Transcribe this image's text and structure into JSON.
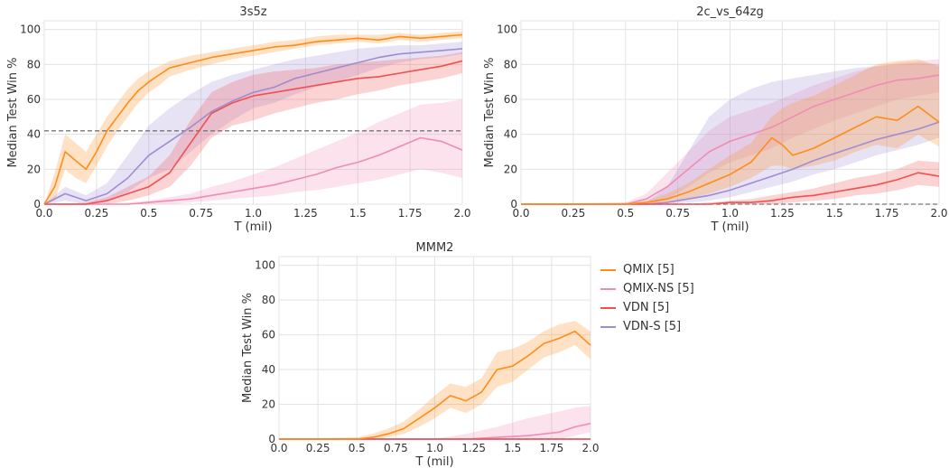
{
  "chart_data": [
    {
      "type": "line",
      "title": "3s5z",
      "xlabel": "T (mil)",
      "ylabel": "Median Test Win %",
      "xlim": [
        0,
        2.0
      ],
      "ylim": [
        0,
        105
      ],
      "xticks": [
        "0.0",
        "0.25",
        "0.5",
        "0.75",
        "1.0",
        "1.25",
        "1.5",
        "1.75",
        "2.0"
      ],
      "yticks": [
        "0",
        "20",
        "40",
        "60",
        "80",
        "100"
      ],
      "grid": true,
      "reference_line": {
        "y": 42,
        "style": "dashed"
      },
      "series": [
        {
          "name": "QMIX [5]",
          "x": [
            0,
            0.05,
            0.1,
            0.15,
            0.2,
            0.25,
            0.3,
            0.35,
            0.4,
            0.45,
            0.5,
            0.55,
            0.6,
            0.7,
            0.8,
            0.9,
            1.0,
            1.1,
            1.2,
            1.3,
            1.4,
            1.5,
            1.6,
            1.7,
            1.8,
            1.9,
            2.0
          ],
          "values": [
            0,
            10,
            30,
            25,
            20,
            30,
            42,
            50,
            58,
            65,
            70,
            74,
            78,
            81,
            84,
            86,
            88,
            90,
            91,
            93,
            94,
            95,
            94,
            96,
            95,
            96,
            97
          ],
          "lower": [
            0,
            2,
            20,
            15,
            12,
            22,
            33,
            42,
            50,
            58,
            64,
            68,
            73,
            77,
            80,
            83,
            85,
            87,
            89,
            91,
            92,
            93,
            92,
            94,
            93,
            94,
            95
          ],
          "upper": [
            0,
            18,
            40,
            35,
            30,
            40,
            50,
            58,
            66,
            72,
            76,
            79,
            82,
            85,
            87,
            89,
            91,
            93,
            94,
            96,
            97,
            97,
            97,
            98,
            97,
            98,
            99
          ]
        },
        {
          "name": "QMIX-NS [5]",
          "x": [
            0,
            0.1,
            0.2,
            0.3,
            0.4,
            0.5,
            0.6,
            0.7,
            0.8,
            0.9,
            1.0,
            1.1,
            1.2,
            1.3,
            1.4,
            1.5,
            1.6,
            1.7,
            1.8,
            1.9,
            2.0
          ],
          "values": [
            0,
            0,
            0,
            0,
            0,
            1,
            2,
            3,
            5,
            7,
            9,
            11,
            14,
            17,
            21,
            24,
            28,
            33,
            38,
            36,
            31
          ],
          "lower": [
            0,
            0,
            0,
            0,
            0,
            0,
            0,
            1,
            2,
            3,
            4,
            5,
            7,
            8,
            10,
            12,
            14,
            17,
            20,
            18,
            15
          ],
          "upper": [
            0,
            0,
            0,
            0,
            1,
            2,
            4,
            6,
            10,
            13,
            17,
            21,
            26,
            31,
            36,
            41,
            47,
            52,
            57,
            58,
            60
          ]
        },
        {
          "name": "VDN [5]",
          "x": [
            0,
            0.1,
            0.2,
            0.3,
            0.4,
            0.5,
            0.6,
            0.7,
            0.8,
            0.9,
            1.0,
            1.1,
            1.2,
            1.3,
            1.4,
            1.5,
            1.6,
            1.7,
            1.8,
            1.9,
            2.0
          ],
          "values": [
            0,
            0,
            0,
            2,
            6,
            10,
            18,
            35,
            52,
            58,
            62,
            64,
            66,
            68,
            70,
            72,
            73,
            75,
            77,
            79,
            82
          ],
          "lower": [
            0,
            0,
            0,
            0,
            2,
            5,
            10,
            22,
            38,
            45,
            48,
            52,
            55,
            58,
            60,
            63,
            65,
            68,
            70,
            72,
            75
          ],
          "upper": [
            0,
            0,
            1,
            4,
            10,
            16,
            28,
            48,
            64,
            70,
            74,
            76,
            77,
            78,
            80,
            81,
            82,
            83,
            84,
            85,
            87
          ]
        },
        {
          "name": "VDN-S [5]",
          "x": [
            0,
            0.1,
            0.2,
            0.3,
            0.4,
            0.5,
            0.6,
            0.7,
            0.8,
            0.9,
            1.0,
            1.1,
            1.2,
            1.3,
            1.4,
            1.5,
            1.6,
            1.7,
            1.8,
            1.9,
            2.0
          ],
          "values": [
            0,
            6,
            2,
            6,
            15,
            28,
            36,
            44,
            53,
            59,
            64,
            67,
            72,
            75,
            78,
            81,
            84,
            86,
            87,
            88,
            89
          ],
          "lower": [
            0,
            2,
            0,
            2,
            7,
            15,
            20,
            30,
            40,
            48,
            55,
            58,
            63,
            67,
            70,
            74,
            78,
            81,
            83,
            84,
            86
          ],
          "upper": [
            0,
            10,
            5,
            12,
            28,
            45,
            55,
            63,
            70,
            74,
            77,
            80,
            83,
            85,
            87,
            89,
            90,
            91,
            91,
            92,
            93
          ]
        }
      ]
    },
    {
      "type": "line",
      "title": "2c_vs_64zg",
      "xlabel": "T (mil)",
      "ylabel": "Median Test Win %",
      "xlim": [
        0,
        2.0
      ],
      "ylim": [
        0,
        105
      ],
      "xticks": [
        "0.0",
        "0.25",
        "0.5",
        "0.75",
        "1.0",
        "1.25",
        "1.5",
        "1.75",
        "2.0"
      ],
      "yticks": [
        "0",
        "20",
        "40",
        "60",
        "80",
        "100"
      ],
      "grid": true,
      "reference_line": {
        "y": 0,
        "style": "dashed"
      },
      "series": [
        {
          "name": "QMIX [5]",
          "x": [
            0,
            0.5,
            0.6,
            0.7,
            0.8,
            0.9,
            1.0,
            1.1,
            1.2,
            1.25,
            1.3,
            1.4,
            1.5,
            1.6,
            1.7,
            1.8,
            1.9,
            2.0
          ],
          "values": [
            0,
            0,
            1,
            3,
            7,
            12,
            17,
            24,
            38,
            34,
            28,
            32,
            38,
            44,
            50,
            48,
            56,
            47
          ],
          "lower": [
            0,
            0,
            0,
            1,
            3,
            6,
            10,
            15,
            22,
            22,
            20,
            22,
            25,
            30,
            34,
            32,
            40,
            33
          ],
          "upper": [
            0,
            0,
            2,
            6,
            12,
            20,
            28,
            35,
            50,
            55,
            58,
            62,
            68,
            74,
            80,
            82,
            83,
            79
          ]
        },
        {
          "name": "QMIX-NS [5]",
          "x": [
            0,
            0.5,
            0.6,
            0.7,
            0.8,
            0.9,
            1.0,
            1.1,
            1.2,
            1.3,
            1.4,
            1.5,
            1.6,
            1.7,
            1.8,
            1.9,
            2.0
          ],
          "values": [
            0,
            0,
            3,
            10,
            20,
            30,
            36,
            40,
            44,
            50,
            56,
            60,
            64,
            68,
            71,
            72,
            74
          ],
          "lower": [
            0,
            0,
            0,
            3,
            10,
            18,
            24,
            28,
            32,
            38,
            43,
            48,
            52,
            56,
            60,
            62,
            64
          ],
          "upper": [
            0,
            1,
            6,
            18,
            30,
            42,
            50,
            54,
            58,
            63,
            68,
            72,
            76,
            79,
            81,
            82,
            83
          ]
        },
        {
          "name": "VDN [5]",
          "x": [
            0,
            0.8,
            0.9,
            1.0,
            1.1,
            1.2,
            1.3,
            1.4,
            1.5,
            1.6,
            1.7,
            1.8,
            1.9,
            2.0
          ],
          "values": [
            0,
            0,
            0,
            1,
            1,
            2,
            4,
            5,
            7,
            9,
            11,
            14,
            18,
            16
          ],
          "lower": [
            0,
            0,
            0,
            0,
            0,
            0,
            1,
            2,
            3,
            5,
            6,
            8,
            11,
            10
          ],
          "upper": [
            0,
            0,
            1,
            2,
            3,
            5,
            7,
            9,
            12,
            15,
            17,
            20,
            25,
            24
          ]
        },
        {
          "name": "VDN-S [5]",
          "x": [
            0,
            0.6,
            0.7,
            0.8,
            0.9,
            1.0,
            1.1,
            1.2,
            1.3,
            1.4,
            1.5,
            1.6,
            1.7,
            1.8,
            1.9,
            2.0
          ],
          "values": [
            0,
            0,
            1,
            3,
            5,
            8,
            12,
            16,
            20,
            25,
            29,
            33,
            37,
            40,
            43,
            47
          ],
          "lower": [
            0,
            0,
            0,
            1,
            2,
            4,
            7,
            10,
            13,
            17,
            20,
            24,
            28,
            31,
            34,
            38
          ],
          "upper": [
            0,
            1,
            10,
            30,
            50,
            60,
            66,
            70,
            72,
            74,
            76,
            78,
            79,
            80,
            81,
            80
          ]
        }
      ]
    },
    {
      "type": "line",
      "title": "MMM2",
      "xlabel": "T (mil)",
      "ylabel": "Median Test Win %",
      "xlim": [
        0,
        2.0
      ],
      "ylim": [
        0,
        105
      ],
      "xticks": [
        "0.0",
        "0.25",
        "0.5",
        "0.75",
        "1.0",
        "1.25",
        "1.5",
        "1.75",
        "2.0"
      ],
      "yticks": [
        "0",
        "20",
        "40",
        "60",
        "80",
        "100"
      ],
      "grid": true,
      "reference_line": {
        "y": 0,
        "style": "dashed"
      },
      "series": [
        {
          "name": "QMIX [5]",
          "x": [
            0,
            0.5,
            0.6,
            0.7,
            0.8,
            0.9,
            1.0,
            1.1,
            1.2,
            1.3,
            1.4,
            1.5,
            1.6,
            1.7,
            1.8,
            1.9,
            2.0
          ],
          "values": [
            0,
            0,
            1,
            3,
            6,
            12,
            18,
            25,
            22,
            27,
            40,
            42,
            48,
            55,
            58,
            62,
            54
          ],
          "lower": [
            0,
            0,
            0,
            1,
            3,
            7,
            12,
            18,
            15,
            20,
            30,
            33,
            40,
            47,
            50,
            54,
            46
          ],
          "upper": [
            0,
            1,
            3,
            6,
            10,
            17,
            25,
            32,
            30,
            35,
            50,
            52,
            56,
            62,
            66,
            68,
            62
          ]
        },
        {
          "name": "QMIX-NS [5]",
          "x": [
            0,
            1.0,
            1.2,
            1.4,
            1.6,
            1.8,
            1.9,
            2.0
          ],
          "values": [
            0,
            0,
            0,
            1,
            2,
            4,
            7,
            9
          ],
          "lower": [
            0,
            0,
            0,
            0,
            0,
            0,
            2,
            4
          ],
          "upper": [
            0,
            0,
            3,
            7,
            12,
            16,
            18,
            19
          ]
        },
        {
          "name": "VDN [5]",
          "x": [
            0,
            2.0
          ],
          "values": [
            0,
            0
          ],
          "lower": [
            0,
            0
          ],
          "upper": [
            0,
            0
          ]
        },
        {
          "name": "VDN-S [5]",
          "x": [
            0,
            2.0
          ],
          "values": [
            0,
            0
          ],
          "lower": [
            0,
            0
          ],
          "upper": [
            0,
            0
          ]
        }
      ]
    }
  ],
  "legend": {
    "items": [
      {
        "label": "QMIX [5]",
        "color": "#ff8c1a"
      },
      {
        "label": "QMIX-NS [5]",
        "color": "#f08cb4"
      },
      {
        "label": "VDN [5]",
        "color": "#f05050"
      },
      {
        "label": "VDN-S [5]",
        "color": "#a08cd2"
      }
    ]
  },
  "colors": {
    "QMIX [5]": "#ff8c1a",
    "QMIX-NS [5]": "#f08cb4",
    "VDN [5]": "#f05050",
    "VDN-S [5]": "#a08cd2",
    "reference": "#777777",
    "grid": "#e3e3e3",
    "text": "#333333"
  }
}
